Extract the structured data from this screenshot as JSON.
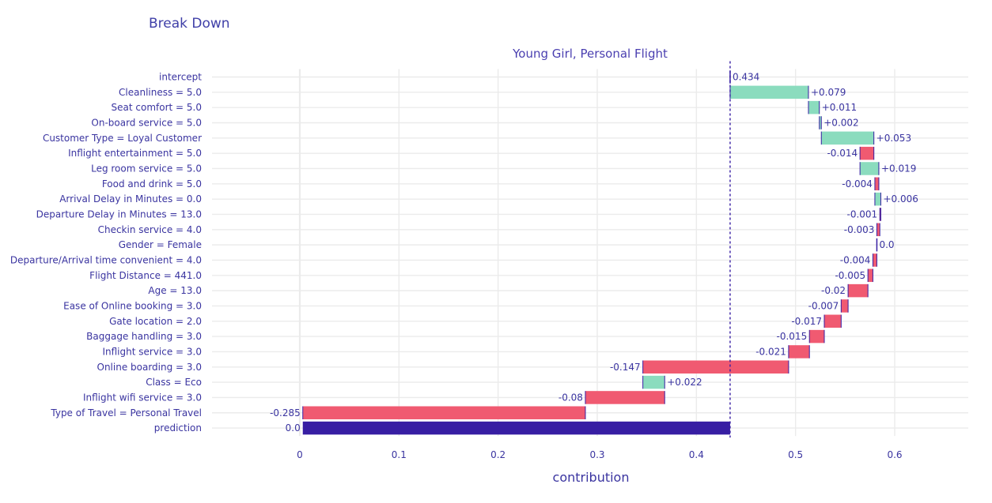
{
  "page": {
    "title": "Break Down"
  },
  "chart_data": {
    "type": "bar",
    "orientation": "horizontal",
    "subtitle": "Young Girl, Personal Flight",
    "xlabel": "contribution",
    "xlim": [
      -0.09,
      0.68
    ],
    "xticks": [
      0,
      0.1,
      0.2,
      0.3,
      0.4,
      0.5,
      0.6
    ],
    "xtick_labels": [
      "0",
      "0.1",
      "0.2",
      "0.3",
      "0.4",
      "0.5",
      "0.6"
    ],
    "reference_line": 0.434,
    "colors": {
      "increase": "#8bdcbe",
      "decrease": "#f05a71",
      "prediction": "#371ea3",
      "connector": "#371ea3"
    },
    "bars": [
      {
        "label": "intercept",
        "start": 0.434,
        "end": 0.434,
        "value_label": "0.434",
        "kind": "intercept"
      },
      {
        "label": "Cleanliness = 5.0",
        "start": 0.434,
        "end": 0.513,
        "value_label": "+0.079",
        "kind": "increase"
      },
      {
        "label": "Seat comfort = 5.0",
        "start": 0.513,
        "end": 0.524,
        "value_label": "+0.011",
        "kind": "increase"
      },
      {
        "label": "On-board service = 5.0",
        "start": 0.524,
        "end": 0.526,
        "value_label": "+0.002",
        "kind": "increase"
      },
      {
        "label": "Customer Type = Loyal Customer",
        "start": 0.526,
        "end": 0.579,
        "value_label": "+0.053",
        "kind": "increase"
      },
      {
        "label": "Inflight entertainment = 5.0",
        "start": 0.579,
        "end": 0.565,
        "value_label": "-0.014",
        "kind": "decrease"
      },
      {
        "label": "Leg room service = 5.0",
        "start": 0.565,
        "end": 0.584,
        "value_label": "+0.019",
        "kind": "increase"
      },
      {
        "label": "Food and drink = 5.0",
        "start": 0.584,
        "end": 0.58,
        "value_label": "-0.004",
        "kind": "decrease"
      },
      {
        "label": "Arrival Delay in Minutes = 0.0",
        "start": 0.58,
        "end": 0.586,
        "value_label": "+0.006",
        "kind": "increase"
      },
      {
        "label": "Departure Delay in Minutes = 13.0",
        "start": 0.586,
        "end": 0.585,
        "value_label": "-0.001",
        "kind": "decrease"
      },
      {
        "label": "Checkin service = 4.0",
        "start": 0.585,
        "end": 0.582,
        "value_label": "-0.003",
        "kind": "decrease"
      },
      {
        "label": "Gender = Female",
        "start": 0.582,
        "end": 0.582,
        "value_label": "0.0",
        "kind": "zero"
      },
      {
        "label": "Departure/Arrival time convenient = 4.0",
        "start": 0.582,
        "end": 0.578,
        "value_label": "-0.004",
        "kind": "decrease"
      },
      {
        "label": "Flight Distance = 441.0",
        "start": 0.578,
        "end": 0.573,
        "value_label": "-0.005",
        "kind": "decrease"
      },
      {
        "label": "Age = 13.0",
        "start": 0.573,
        "end": 0.553,
        "value_label": "-0.02",
        "kind": "decrease"
      },
      {
        "label": "Ease of Online booking = 3.0",
        "start": 0.553,
        "end": 0.546,
        "value_label": "-0.007",
        "kind": "decrease"
      },
      {
        "label": "Gate location = 2.0",
        "start": 0.546,
        "end": 0.529,
        "value_label": "-0.017",
        "kind": "decrease"
      },
      {
        "label": "Baggage handling = 3.0",
        "start": 0.529,
        "end": 0.514,
        "value_label": "-0.015",
        "kind": "decrease"
      },
      {
        "label": "Inflight service = 3.0",
        "start": 0.514,
        "end": 0.493,
        "value_label": "-0.021",
        "kind": "decrease"
      },
      {
        "label": "Online boarding = 3.0",
        "start": 0.493,
        "end": 0.346,
        "value_label": "-0.147",
        "kind": "decrease"
      },
      {
        "label": "Class = Eco",
        "start": 0.346,
        "end": 0.368,
        "value_label": "+0.022",
        "kind": "increase"
      },
      {
        "label": "Inflight wifi service = 3.0",
        "start": 0.368,
        "end": 0.288,
        "value_label": "-0.08",
        "kind": "decrease"
      },
      {
        "label": "Type of Travel = Personal Travel",
        "start": 0.288,
        "end": 0.003,
        "value_label": "-0.285",
        "kind": "decrease"
      },
      {
        "label": "prediction",
        "start": 0.003,
        "end": 0.434,
        "value_label": "0.0",
        "kind": "prediction"
      }
    ]
  }
}
